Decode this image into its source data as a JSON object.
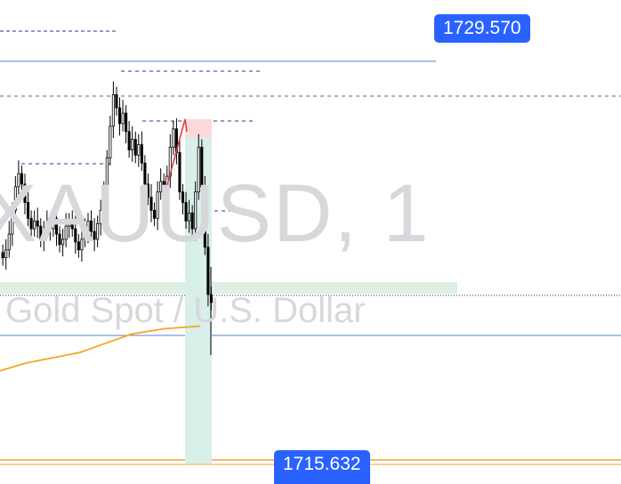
{
  "watermark": {
    "symbol": "XAUUSD, 1",
    "description": "Gold Spot / U.S. Dollar"
  },
  "price_labels": {
    "upper": "1729.570",
    "lower": "1715.632"
  },
  "colors": {
    "accent": "#2962ff",
    "candle_up": "#ffffff",
    "candle_down": "#000000",
    "moving_average": "#f5a623",
    "target_zone": "#d9efe9",
    "stop_zone": "#fbd9dc",
    "pattern_line": "#e0424b"
  },
  "chart_data": {
    "type": "candlestick",
    "symbol": "XAUUSD",
    "timeframe": "1",
    "ylim": [
      1713.8,
      1731.9
    ],
    "horizontal_levels": [
      1729.57,
      1715.632
    ],
    "close_series": [
      1722.1,
      1722.4,
      1723.0,
      1723.9,
      1724.8,
      1725.3,
      1724.9,
      1724.2,
      1723.6,
      1723.2,
      1723.5,
      1723.3,
      1722.8,
      1723.1,
      1723.4,
      1723.2,
      1723.6,
      1723.0,
      1722.6,
      1722.8,
      1723.3,
      1723.5,
      1723.2,
      1722.7,
      1722.4,
      1722.8,
      1723.1,
      1723.5,
      1723.1,
      1722.8,
      1723.4,
      1723.9,
      1724.5,
      1725.9,
      1727.1,
      1728.3,
      1727.8,
      1727.2,
      1727.6,
      1726.9,
      1726.2,
      1726.6,
      1726.0,
      1726.4,
      1725.7,
      1724.9,
      1724.4,
      1723.9,
      1723.6,
      1724.6,
      1725.0,
      1724.6,
      1725.2,
      1726.3,
      1727.0,
      1726.1,
      1724.6,
      1724.2,
      1723.5,
      1723.8,
      1723.2,
      1724.6,
      1726.3,
      1724.8,
      1722.5,
      1720.7,
      1720.4
    ],
    "moving_average": [
      1717.8,
      1718.1,
      1718.3,
      1718.5,
      1718.8,
      1719.2,
      1719.4,
      1719.5
    ],
    "annotations": {
      "position_entry": 1726.35,
      "stop_level": 1726.9,
      "target_level": 1713.9
    }
  }
}
